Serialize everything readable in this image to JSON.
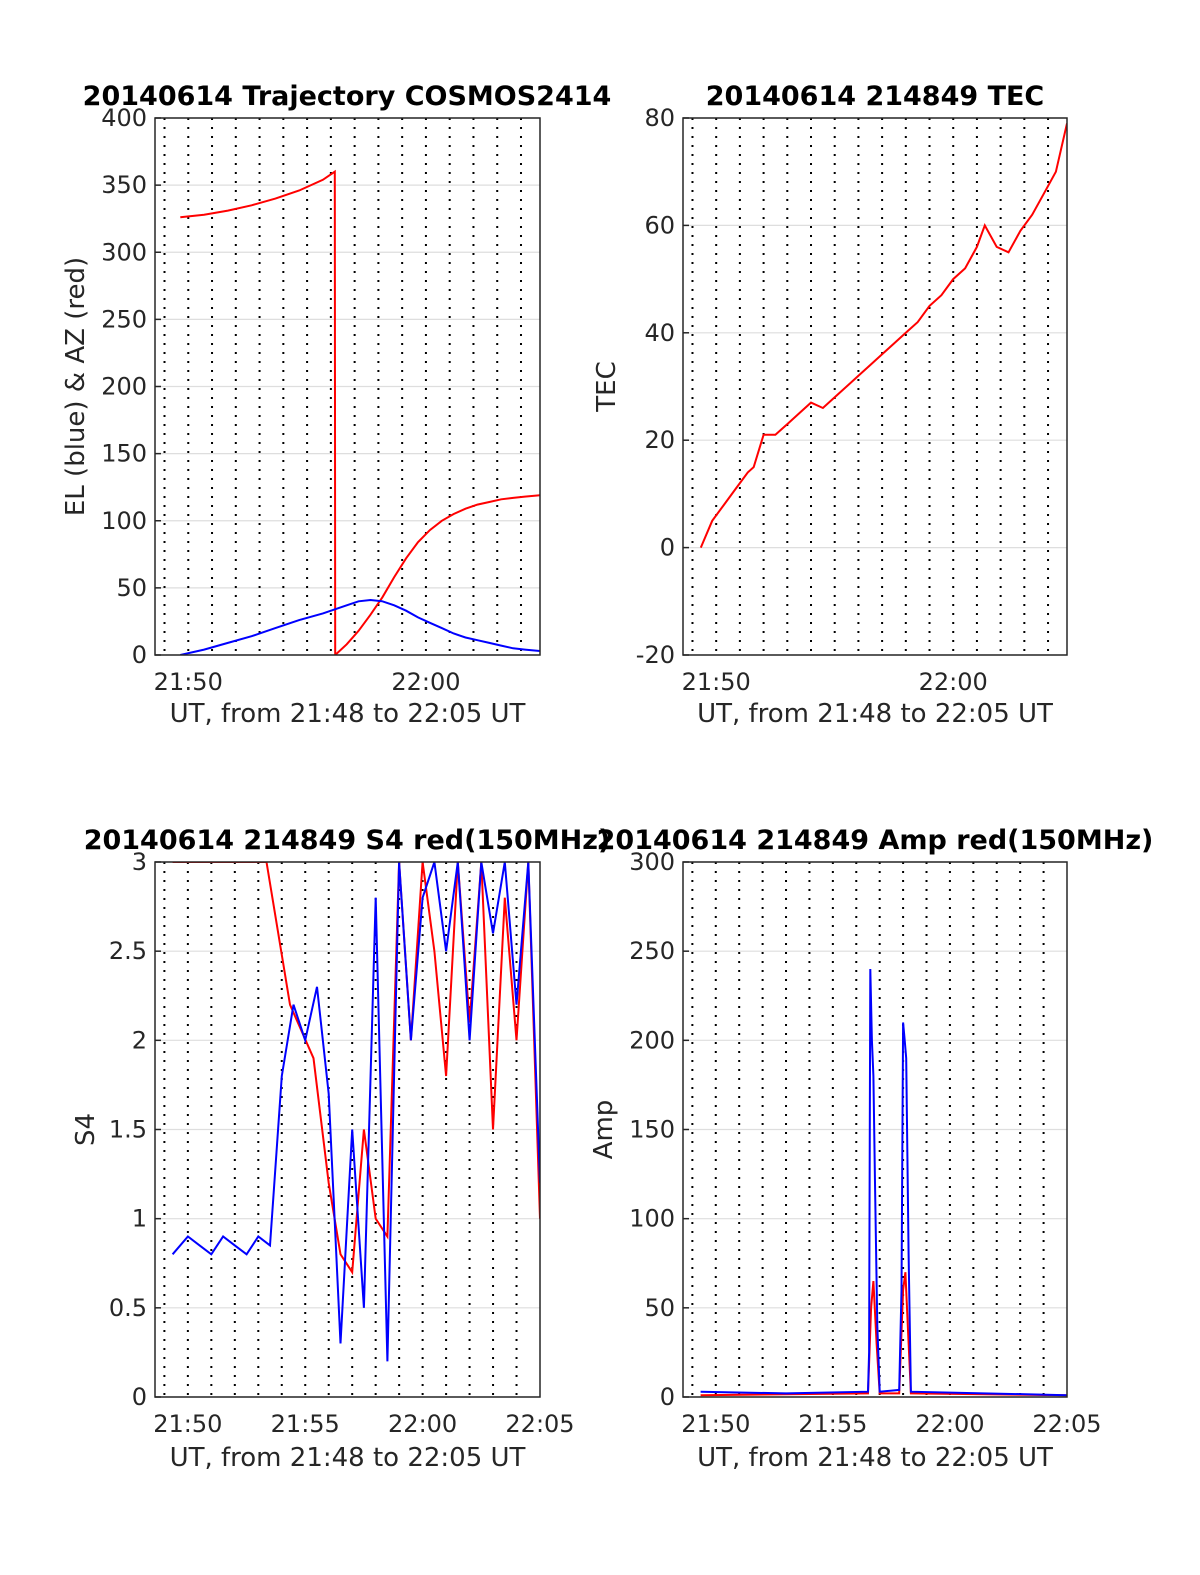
{
  "chart_data": [
    {
      "type": "line",
      "title": "20140614 Trajectory COSMOS2414",
      "xlabel": "UT, from 21:48 to 22:05 UT",
      "ylabel": "EL (blue) & AZ (red)",
      "xlim": [
        "21:48:36",
        "22:04:48"
      ],
      "ylim": [
        0,
        400
      ],
      "x_ticks": [
        "21:50",
        "22:00"
      ],
      "y_ticks": [
        "0",
        "50",
        "100",
        "150",
        "200",
        "250",
        "300",
        "350",
        "400"
      ],
      "grid": true,
      "series": [
        {
          "color": "#ff0000",
          "x": [
            "21:49:40",
            "21:50:40",
            "21:51:40",
            "21:52:40",
            "21:53:40",
            "21:54:40",
            "21:55:40",
            "21:56:10",
            "21:56:11",
            "21:56:40",
            "21:57:10",
            "21:57:40",
            "21:58:10",
            "21:58:40",
            "21:59:10",
            "21:59:40",
            "22:00:10",
            "22:00:40",
            "22:01:10",
            "22:01:40",
            "22:02:10",
            "22:02:40",
            "22:03:10",
            "22:03:40",
            "22:04:10",
            "22:04:48"
          ],
          "values": [
            326,
            328,
            331,
            335,
            340,
            346,
            354,
            360,
            0,
            8,
            18,
            30,
            43,
            58,
            72,
            84,
            93,
            100,
            105,
            109,
            112,
            114,
            116,
            117,
            118,
            119
          ]
        },
        {
          "color": "#0000ff",
          "x": [
            "21:49:40",
            "21:50:40",
            "21:51:40",
            "21:52:40",
            "21:53:40",
            "21:54:40",
            "21:55:40",
            "21:56:40",
            "21:57:10",
            "21:57:40",
            "21:58:10",
            "21:58:40",
            "21:59:10",
            "21:59:40",
            "22:00:10",
            "22:00:40",
            "22:01:10",
            "22:01:40",
            "22:02:10",
            "22:02:40",
            "22:03:10",
            "22:03:40",
            "22:04:10",
            "22:04:48"
          ],
          "values": [
            0,
            4,
            9,
            14,
            20,
            26,
            31,
            37,
            40,
            41,
            40,
            37,
            33,
            28,
            24,
            20,
            16,
            13,
            11,
            9,
            7,
            5,
            4,
            3
          ]
        }
      ]
    },
    {
      "type": "line",
      "title": "20140614 214849 TEC",
      "xlabel": "UT, from 21:48 to 22:05 UT",
      "ylabel": "TEC",
      "xlim": [
        "21:48:36",
        "22:04:48"
      ],
      "ylim": [
        -20,
        80
      ],
      "x_ticks": [
        "21:50",
        "22:00"
      ],
      "y_ticks": [
        "-20",
        "0",
        "20",
        "40",
        "60",
        "80"
      ],
      "grid": true,
      "series": [
        {
          "color": "#ff0000",
          "x": [
            "21:49:21",
            "21:49:50",
            "21:50:20",
            "21:50:50",
            "21:51:20",
            "21:51:35",
            "21:52:00",
            "21:52:30",
            "21:53:00",
            "21:53:30",
            "21:54:00",
            "21:54:30",
            "21:55:00",
            "21:55:30",
            "21:56:00",
            "21:56:30",
            "21:57:00",
            "21:57:30",
            "21:58:00",
            "21:58:30",
            "21:59:00",
            "21:59:30",
            "22:00:00",
            "22:00:30",
            "22:01:00",
            "22:01:20",
            "22:01:50",
            "22:02:20",
            "22:02:50",
            "22:03:20",
            "22:03:50",
            "22:04:20",
            "22:04:48"
          ],
          "values": [
            0,
            5,
            8,
            11,
            14,
            15,
            21,
            21,
            23,
            25,
            27,
            26,
            28,
            30,
            32,
            34,
            36,
            38,
            40,
            42,
            45,
            47,
            50,
            52,
            56,
            60,
            56,
            55,
            59,
            62,
            66,
            70,
            79
          ]
        }
      ]
    },
    {
      "type": "line",
      "title": "20140614 214849 S4 red(150MHz)",
      "xlabel": "UT, from 21:48 to 22:05 UT",
      "ylabel": "S4",
      "xlim": [
        "21:48:36",
        "22:05:00"
      ],
      "ylim": [
        0,
        3
      ],
      "x_ticks": [
        "21:50",
        "21:55",
        "22:00",
        "22:05"
      ],
      "y_ticks": [
        "0",
        "0.5",
        "1",
        "1.5",
        "2",
        "2.5",
        "3"
      ],
      "grid": true,
      "series": [
        {
          "color": "#ff0000",
          "x": [
            "21:49:21",
            "21:50:21",
            "21:51:21",
            "21:52:21",
            "21:53:21",
            "21:54:21",
            "21:55:21",
            "21:56:00",
            "21:56:30",
            "21:57:00",
            "21:57:30",
            "21:58:00",
            "21:58:30",
            "21:59:00",
            "21:59:30",
            "22:00:00",
            "22:00:30",
            "22:01:00",
            "22:01:30",
            "22:02:00",
            "22:02:30",
            "22:03:00",
            "22:03:30",
            "22:04:00",
            "22:04:30",
            "22:05:00"
          ],
          "values": [
            3,
            3,
            3,
            3,
            3,
            2.2,
            1.9,
            1.2,
            0.8,
            0.7,
            1.5,
            1.0,
            0.9,
            3,
            2.0,
            3,
            2.5,
            1.8,
            3,
            2.1,
            3,
            1.5,
            2.8,
            2.0,
            3,
            1.0
          ]
        },
        {
          "color": "#0000ff",
          "x": [
            "21:49:21",
            "21:50:00",
            "21:50:30",
            "21:51:00",
            "21:51:30",
            "21:52:00",
            "21:52:30",
            "21:53:00",
            "21:53:30",
            "21:54:00",
            "21:54:30",
            "21:55:00",
            "21:55:30",
            "21:56:00",
            "21:56:30",
            "21:57:00",
            "21:57:30",
            "21:58:00",
            "21:58:30",
            "21:59:00",
            "21:59:30",
            "22:00:00",
            "22:00:30",
            "22:01:00",
            "22:01:30",
            "22:02:00",
            "22:02:30",
            "22:03:00",
            "22:03:30",
            "22:04:00",
            "22:04:30",
            "22:05:00"
          ],
          "values": [
            0.8,
            0.9,
            0.85,
            0.8,
            0.9,
            0.85,
            0.8,
            0.9,
            0.85,
            1.8,
            2.2,
            2.0,
            2.3,
            1.7,
            0.3,
            1.5,
            0.5,
            2.8,
            0.2,
            3,
            2.0,
            2.8,
            3,
            2.5,
            3,
            2.0,
            3,
            2.6,
            3,
            2.2,
            3,
            1.2
          ]
        }
      ]
    },
    {
      "type": "line",
      "title": "20140614 214849 Amp red(150MHz)",
      "xlabel": "UT, from 21:48 to 22:05 UT",
      "ylabel": "Amp",
      "xlim": [
        "21:48:36",
        "22:05:00"
      ],
      "ylim": [
        0,
        300
      ],
      "x_ticks": [
        "21:50",
        "21:55",
        "22:00",
        "22:05"
      ],
      "y_ticks": [
        "0",
        "50",
        "100",
        "150",
        "200",
        "250",
        "300"
      ],
      "grid": true,
      "series": [
        {
          "color": "#ff0000",
          "x": [
            "21:49:21",
            "21:56:30",
            "21:56:38",
            "21:56:44",
            "21:56:52",
            "21:57:00",
            "21:57:50",
            "21:58:00",
            "21:58:06",
            "21:58:12",
            "21:58:20",
            "22:05:00"
          ],
          "values": [
            1,
            2,
            50,
            65,
            30,
            2,
            2,
            60,
            70,
            40,
            2,
            1
          ]
        },
        {
          "color": "#0000ff",
          "x": [
            "21:49:21",
            "21:53:00",
            "21:56:30",
            "21:56:33",
            "21:56:36",
            "21:56:40",
            "21:56:44",
            "21:56:48",
            "21:56:54",
            "21:57:00",
            "21:57:50",
            "21:57:56",
            "21:58:00",
            "21:58:04",
            "21:58:08",
            "21:58:14",
            "21:58:20",
            "22:05:00"
          ],
          "values": [
            3,
            2,
            3,
            25,
            240,
            200,
            180,
            120,
            40,
            3,
            4,
            60,
            210,
            200,
            190,
            80,
            3,
            1
          ]
        }
      ]
    }
  ]
}
